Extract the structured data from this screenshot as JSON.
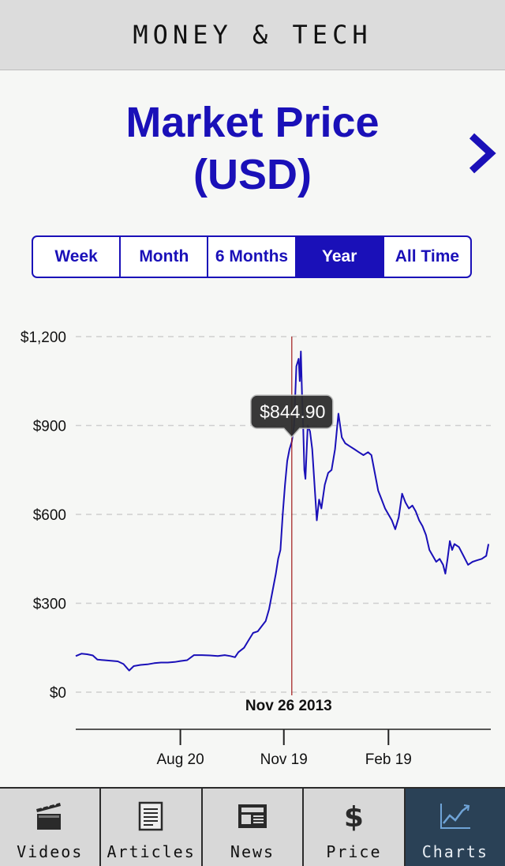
{
  "header": {
    "title": "MONEY & TECH"
  },
  "page": {
    "heading_line1": "Market Price",
    "heading_line2": "(USD)"
  },
  "icons": {
    "next": "chevron-right-icon"
  },
  "ranges": [
    {
      "label": "Week",
      "active": false
    },
    {
      "label": "Month",
      "active": false
    },
    {
      "label": "6 Months",
      "active": false
    },
    {
      "label": "Year",
      "active": true
    },
    {
      "label": "All Time",
      "active": false
    }
  ],
  "chart_data": {
    "type": "line",
    "y_ticks": [
      "$1,200",
      "$900",
      "$600",
      "$300",
      "$0"
    ],
    "y_tick_values": [
      1200,
      900,
      600,
      300,
      0
    ],
    "ylim": [
      -120,
      1280
    ],
    "x_ticks": [
      "Aug 20",
      "Nov 19",
      "Feb 19"
    ],
    "x_tick_values": [
      "2013-08-20",
      "2013-11-19",
      "2014-02-19"
    ],
    "xlim": [
      "2013-05-20",
      "2014-05-20"
    ],
    "grid": true,
    "line_color": "#1a10b8",
    "selection": {
      "date_label": "Nov 26 2013",
      "date": "2013-11-26",
      "value_label": "$844.90",
      "value": 844.9
    },
    "series": [
      {
        "points": [
          [
            "2013-05-20",
            122
          ],
          [
            "2013-05-25",
            130
          ],
          [
            "2013-05-30",
            128
          ],
          [
            "2013-06-04",
            124
          ],
          [
            "2013-06-08",
            110
          ],
          [
            "2013-06-14",
            108
          ],
          [
            "2013-06-20",
            106
          ],
          [
            "2013-06-26",
            104
          ],
          [
            "2013-07-01",
            95
          ],
          [
            "2013-07-04",
            82
          ],
          [
            "2013-07-06",
            73
          ],
          [
            "2013-07-10",
            88
          ],
          [
            "2013-07-16",
            92
          ],
          [
            "2013-07-22",
            94
          ],
          [
            "2013-07-28",
            98
          ],
          [
            "2013-08-03",
            100
          ],
          [
            "2013-08-09",
            100
          ],
          [
            "2013-08-15",
            102
          ],
          [
            "2013-08-20",
            105
          ],
          [
            "2013-08-26",
            108
          ],
          [
            "2013-09-01",
            125
          ],
          [
            "2013-09-08",
            125
          ],
          [
            "2013-09-15",
            124
          ],
          [
            "2013-09-22",
            122
          ],
          [
            "2013-09-28",
            125
          ],
          [
            "2013-10-03",
            122
          ],
          [
            "2013-10-07",
            118
          ],
          [
            "2013-10-10",
            135
          ],
          [
            "2013-10-15",
            150
          ],
          [
            "2013-10-19",
            175
          ],
          [
            "2013-10-23",
            200
          ],
          [
            "2013-10-27",
            205
          ],
          [
            "2013-10-30",
            220
          ],
          [
            "2013-11-03",
            240
          ],
          [
            "2013-11-06",
            280
          ],
          [
            "2013-11-09",
            340
          ],
          [
            "2013-11-12",
            400
          ],
          [
            "2013-11-14",
            450
          ],
          [
            "2013-11-16",
            480
          ],
          [
            "2013-11-18",
            600
          ],
          [
            "2013-11-20",
            700
          ],
          [
            "2013-11-22",
            780
          ],
          [
            "2013-11-24",
            820
          ],
          [
            "2013-11-26",
            844.9
          ],
          [
            "2013-11-28",
            900
          ],
          [
            "2013-11-30",
            1100
          ],
          [
            "2013-12-02",
            1125
          ],
          [
            "2013-12-03",
            1050
          ],
          [
            "2013-12-04",
            1150
          ],
          [
            "2013-12-05",
            1000
          ],
          [
            "2013-12-06",
            900
          ],
          [
            "2013-12-07",
            750
          ],
          [
            "2013-12-08",
            720
          ],
          [
            "2013-12-10",
            900
          ],
          [
            "2013-12-12",
            880
          ],
          [
            "2013-12-14",
            820
          ],
          [
            "2013-12-16",
            700
          ],
          [
            "2013-12-18",
            580
          ],
          [
            "2013-12-20",
            650
          ],
          [
            "2013-12-22",
            620
          ],
          [
            "2013-12-25",
            700
          ],
          [
            "2013-12-28",
            740
          ],
          [
            "2013-12-31",
            750
          ],
          [
            "2014-01-03",
            820
          ],
          [
            "2014-01-06",
            940
          ],
          [
            "2014-01-09",
            860
          ],
          [
            "2014-01-12",
            840
          ],
          [
            "2014-01-16",
            830
          ],
          [
            "2014-01-20",
            820
          ],
          [
            "2014-01-24",
            810
          ],
          [
            "2014-01-28",
            800
          ],
          [
            "2014-02-01",
            810
          ],
          [
            "2014-02-04",
            800
          ],
          [
            "2014-02-07",
            740
          ],
          [
            "2014-02-10",
            680
          ],
          [
            "2014-02-13",
            650
          ],
          [
            "2014-02-16",
            620
          ],
          [
            "2014-02-19",
            600
          ],
          [
            "2014-02-22",
            580
          ],
          [
            "2014-02-25",
            550
          ],
          [
            "2014-02-28",
            590
          ],
          [
            "2014-03-03",
            670
          ],
          [
            "2014-03-06",
            640
          ],
          [
            "2014-03-09",
            620
          ],
          [
            "2014-03-12",
            630
          ],
          [
            "2014-03-15",
            610
          ],
          [
            "2014-03-18",
            580
          ],
          [
            "2014-03-21",
            560
          ],
          [
            "2014-03-24",
            530
          ],
          [
            "2014-03-27",
            480
          ],
          [
            "2014-03-30",
            460
          ],
          [
            "2014-04-02",
            440
          ],
          [
            "2014-04-05",
            450
          ],
          [
            "2014-04-08",
            430
          ],
          [
            "2014-04-10",
            400
          ],
          [
            "2014-04-12",
            450
          ],
          [
            "2014-04-14",
            510
          ],
          [
            "2014-04-16",
            480
          ],
          [
            "2014-04-18",
            500
          ],
          [
            "2014-04-22",
            490
          ],
          [
            "2014-04-26",
            460
          ],
          [
            "2014-04-30",
            430
          ],
          [
            "2014-05-04",
            440
          ],
          [
            "2014-05-08",
            445
          ],
          [
            "2014-05-12",
            450
          ],
          [
            "2014-05-16",
            460
          ],
          [
            "2014-05-18",
            500
          ]
        ]
      }
    ]
  },
  "tabs": [
    {
      "label": "Videos",
      "icon": "clapperboard-icon",
      "active": false
    },
    {
      "label": "Articles",
      "icon": "article-icon",
      "active": false
    },
    {
      "label": "News",
      "icon": "newspaper-icon",
      "active": false
    },
    {
      "label": "Price",
      "icon": "dollar-icon",
      "active": false
    },
    {
      "label": "Charts",
      "icon": "line-chart-icon",
      "active": true
    }
  ],
  "colors": {
    "accent": "#1a10b8",
    "marker": "#a01818",
    "tab_active": "#2a4156"
  }
}
